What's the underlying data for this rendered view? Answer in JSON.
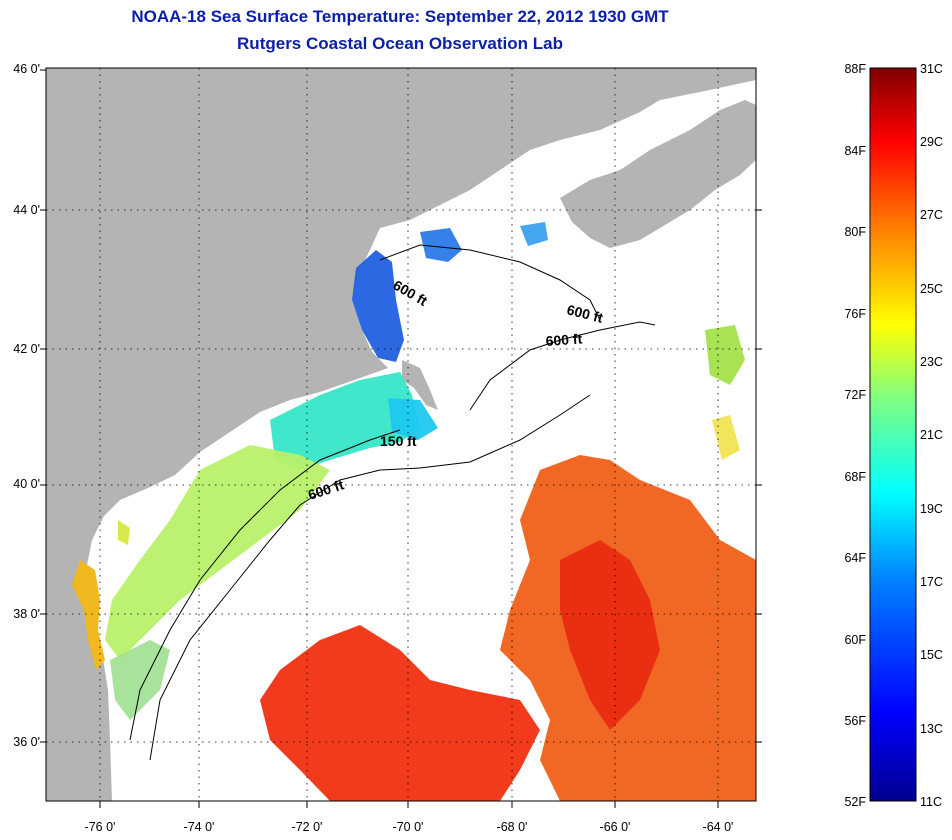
{
  "titles": {
    "line1": "NOAA-18 Sea Surface Temperature:  September 22, 2012 1930 GMT",
    "line2": "Rutgers Coastal Ocean Observation Lab"
  },
  "map": {
    "lat_labels": [
      "46 0'",
      "44 0'",
      "42 0'",
      "40 0'",
      "38 0'",
      "36 0'"
    ],
    "lon_labels": [
      "-76 0'",
      "-74 0'",
      "-72 0'",
      "-70 0'",
      "-68 0'",
      "-66 0'",
      "-64 0'"
    ],
    "contour_labels": [
      "600 ft",
      "600 ft",
      "600 ft",
      "150 ft",
      "600 ft"
    ],
    "land_color": "#b4b4b4",
    "grid": "dotted"
  },
  "colorbar": {
    "fahrenheit_labels": [
      "88F",
      "84F",
      "80F",
      "76F",
      "72F",
      "68F",
      "64F",
      "60F",
      "56F",
      "52F"
    ],
    "celsius_labels": [
      "31C",
      "29C",
      "27C",
      "25C",
      "23C",
      "21C",
      "19C",
      "17C",
      "15C",
      "13C",
      "11C"
    ],
    "range_c": [
      11,
      31
    ],
    "range_f": [
      52,
      88
    ],
    "colors": [
      "#00008f",
      "#0000ff",
      "#0080ff",
      "#00ffff",
      "#80ff80",
      "#ffff00",
      "#ff8000",
      "#ff0000",
      "#800000"
    ]
  }
}
